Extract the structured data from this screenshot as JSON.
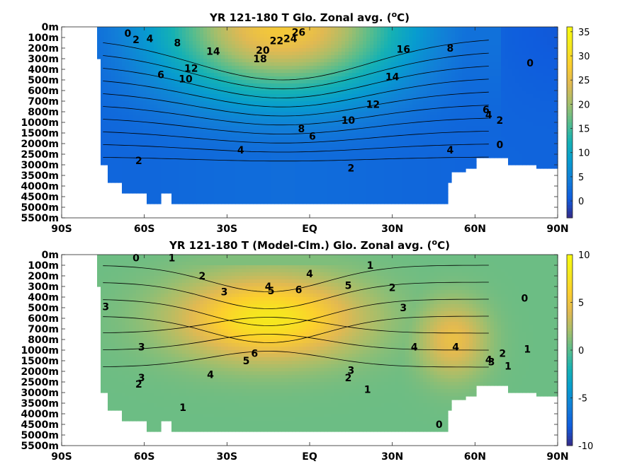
{
  "chart_data": [
    {
      "type": "heatmap",
      "title": "YR 121-180 T Glo. Zonal avg. (",
      "title_sup": "o",
      "title_end": "C)",
      "x_ticks": [
        "90S",
        "60S",
        "30S",
        "EQ",
        "30N",
        "60N",
        "90N"
      ],
      "x_values": [
        -90,
        -60,
        -30,
        0,
        30,
        60,
        90
      ],
      "y_ticks": [
        "0m",
        "100m",
        "200m",
        "300m",
        "400m",
        "500m",
        "600m",
        "700m",
        "800m",
        "1000m",
        "1500m",
        "2000m",
        "2500m",
        "3000m",
        "3500m",
        "4000m",
        "4500m",
        "5000m",
        "5500m"
      ],
      "colorbar": {
        "ticks": [
          "0",
          "5",
          "10",
          "15",
          "20",
          "25",
          "30",
          "35"
        ],
        "values": [
          0,
          5,
          10,
          15,
          20,
          25,
          30,
          35
        ],
        "range": [
          -3.5,
          36
        ],
        "colormap": "parula"
      },
      "field": {
        "surface_max": 27,
        "surface_min": 0,
        "deep_value": 1.5,
        "hotspot_lat": -10,
        "hotspot_width": 45
      },
      "contour_labels": [
        {
          "text": "0",
          "lat": -66,
          "lvl": 0.6
        },
        {
          "text": "2",
          "lat": -63,
          "lvl": 1.2
        },
        {
          "text": "4",
          "lat": -58,
          "lvl": 1.1
        },
        {
          "text": "8",
          "lat": -48,
          "lvl": 1.5
        },
        {
          "text": "14",
          "lat": -35,
          "lvl": 2.3
        },
        {
          "text": "6",
          "lat": -54,
          "lvl": 4.5
        },
        {
          "text": "12",
          "lat": -43,
          "lvl": 3.9
        },
        {
          "text": "10",
          "lat": -45,
          "lvl": 4.9
        },
        {
          "text": "20",
          "lat": -17,
          "lvl": 2.2
        },
        {
          "text": "22",
          "lat": -12,
          "lvl": 1.3
        },
        {
          "text": "24",
          "lat": -7,
          "lvl": 1.1
        },
        {
          "text": "26",
          "lat": -4,
          "lvl": 0.5
        },
        {
          "text": "18",
          "lat": -18,
          "lvl": 3.0
        },
        {
          "text": "16",
          "lat": 34,
          "lvl": 2.1
        },
        {
          "text": "8",
          "lat": 51,
          "lvl": 2.0
        },
        {
          "text": "14",
          "lat": 30,
          "lvl": 4.7
        },
        {
          "text": "12",
          "lat": 23,
          "lvl": 7.3
        },
        {
          "text": "10",
          "lat": 14,
          "lvl": 8.8
        },
        {
          "text": "8",
          "lat": -3,
          "lvl": 9.6
        },
        {
          "text": "6",
          "lat": 1,
          "lvl": 10.3
        },
        {
          "text": "4",
          "lat": -25,
          "lvl": 11.6
        },
        {
          "text": "2",
          "lat": -62,
          "lvl": 12.6
        },
        {
          "text": "4",
          "lat": 51,
          "lvl": 11.6
        },
        {
          "text": "2",
          "lat": 15,
          "lvl": 13.3
        },
        {
          "text": "0",
          "lat": 80,
          "lvl": 3.4
        },
        {
          "text": "6",
          "lat": 64,
          "lvl": 7.8
        },
        {
          "text": "4",
          "lat": 65,
          "lvl": 8.3
        },
        {
          "text": "2",
          "lat": 69,
          "lvl": 8.8
        },
        {
          "text": "0",
          "lat": 69,
          "lvl": 11.1
        }
      ]
    },
    {
      "type": "heatmap",
      "title": "YR 121-180 T (Model-Clm.) Glo. Zonal avg. (",
      "title_sup": "o",
      "title_end": "C)",
      "x_ticks": [
        "90S",
        "60S",
        "30S",
        "EQ",
        "30N",
        "60N",
        "90N"
      ],
      "x_values": [
        -90,
        -60,
        -30,
        0,
        30,
        60,
        90
      ],
      "y_ticks": [
        "0m",
        "100m",
        "200m",
        "300m",
        "400m",
        "500m",
        "600m",
        "700m",
        "800m",
        "1000m",
        "1500m",
        "2000m",
        "2500m",
        "3000m",
        "3500m",
        "4000m",
        "4500m",
        "5000m",
        "5500m"
      ],
      "colorbar": {
        "ticks": [
          "-10",
          "-5",
          "0",
          "5",
          "10"
        ],
        "values": [
          -10,
          -5,
          0,
          5,
          10
        ],
        "range": [
          -10,
          10
        ],
        "colormap": "parula"
      },
      "field": {
        "max_anomaly": 7.5,
        "core_lat": -15,
        "core_depth_lvl": 6,
        "deep_value": 0.5
      },
      "contour_labels": [
        {
          "text": "0",
          "lat": -63,
          "lvl": 0.3
        },
        {
          "text": "1",
          "lat": -50,
          "lvl": 0.3
        },
        {
          "text": "2",
          "lat": -39,
          "lvl": 2.0
        },
        {
          "text": "3",
          "lat": -31,
          "lvl": 3.5
        },
        {
          "text": "3",
          "lat": -74,
          "lvl": 4.9
        },
        {
          "text": "4",
          "lat": -15,
          "lvl": 3.0
        },
        {
          "text": "5",
          "lat": -14,
          "lvl": 3.4
        },
        {
          "text": "6",
          "lat": -4,
          "lvl": 3.3
        },
        {
          "text": "4",
          "lat": 0,
          "lvl": 1.8
        },
        {
          "text": "5",
          "lat": 14,
          "lvl": 2.9
        },
        {
          "text": "1",
          "lat": 22,
          "lvl": 1.0
        },
        {
          "text": "2",
          "lat": 30,
          "lvl": 3.1
        },
        {
          "text": "3",
          "lat": 34,
          "lvl": 5.0
        },
        {
          "text": "0",
          "lat": 78,
          "lvl": 4.1
        },
        {
          "text": "4",
          "lat": 38,
          "lvl": 8.7
        },
        {
          "text": "4",
          "lat": 53,
          "lvl": 8.7
        },
        {
          "text": "6",
          "lat": -20,
          "lvl": 9.3
        },
        {
          "text": "5",
          "lat": -23,
          "lvl": 10.0
        },
        {
          "text": "4",
          "lat": -36,
          "lvl": 11.3
        },
        {
          "text": "3",
          "lat": -61,
          "lvl": 8.7
        },
        {
          "text": "3",
          "lat": -61,
          "lvl": 11.6
        },
        {
          "text": "3",
          "lat": 15,
          "lvl": 10.9
        },
        {
          "text": "2",
          "lat": -62,
          "lvl": 12.2
        },
        {
          "text": "2",
          "lat": 14,
          "lvl": 11.6
        },
        {
          "text": "1",
          "lat": 21,
          "lvl": 12.7
        },
        {
          "text": "1",
          "lat": -46,
          "lvl": 14.4
        },
        {
          "text": "4",
          "lat": 65,
          "lvl": 9.9
        },
        {
          "text": "3",
          "lat": 66,
          "lvl": 10.1
        },
        {
          "text": "2",
          "lat": 70,
          "lvl": 9.3
        },
        {
          "text": "1",
          "lat": 79,
          "lvl": 8.9
        },
        {
          "text": "1",
          "lat": 72,
          "lvl": 10.5
        },
        {
          "text": "0",
          "lat": 47,
          "lvl": 16.0
        }
      ]
    }
  ]
}
